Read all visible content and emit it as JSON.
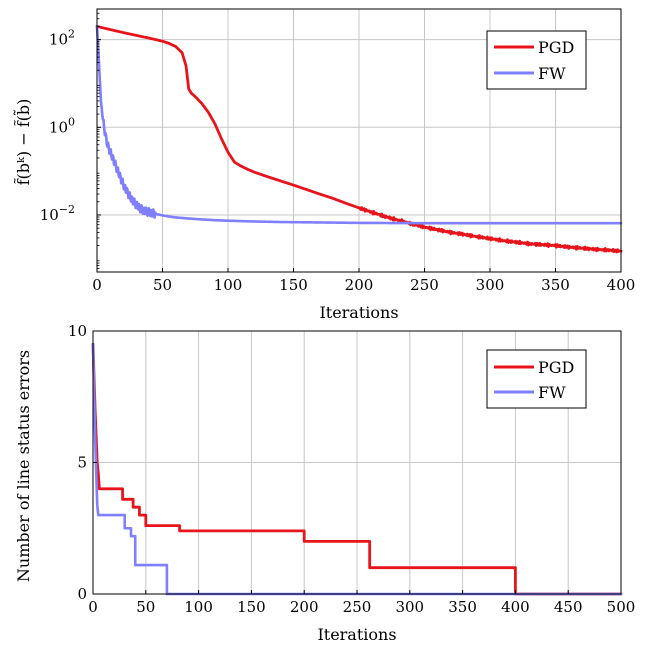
{
  "chart_data": [
    {
      "type": "line",
      "xlabel": "Iterations",
      "ylabel": "f̃(bᵏ) − f̃(b̃)",
      "xlim": [
        0,
        400
      ],
      "ylim": [
        0.0005,
        500
      ],
      "yscale": "log",
      "xticks": [
        "0",
        "50",
        "100",
        "150",
        "200",
        "250",
        "300",
        "350",
        "400"
      ],
      "yticks": [
        {
          "base": "10",
          "exp": "2",
          "value": 100
        },
        {
          "base": "10",
          "exp": "0",
          "value": 1
        },
        {
          "base": "10",
          "exp": "−2",
          "value": 0.01
        }
      ],
      "grid": true,
      "legend_position": "top-right",
      "series": [
        {
          "name": "PGD",
          "color": "#e8141c",
          "x": [
            0,
            10,
            20,
            30,
            40,
            50,
            55,
            60,
            65,
            68,
            70,
            72,
            75,
            80,
            85,
            90,
            95,
            100,
            105,
            110,
            115,
            120,
            130,
            140,
            150,
            160,
            170,
            180,
            190,
            200,
            210,
            220,
            230,
            240,
            250,
            260,
            270,
            280,
            290,
            300,
            310,
            320,
            330,
            340,
            350,
            360,
            370,
            380,
            390,
            400
          ],
          "values": [
            200,
            170,
            145,
            125,
            108,
            92,
            82,
            70,
            50,
            25,
            7.5,
            6.0,
            5.0,
            3.5,
            2.2,
            1.2,
            0.55,
            0.27,
            0.16,
            0.13,
            0.11,
            0.095,
            0.075,
            0.06,
            0.048,
            0.038,
            0.03,
            0.024,
            0.0185,
            0.0145,
            0.0115,
            0.0092,
            0.0076,
            0.0063,
            0.0053,
            0.0046,
            0.004,
            0.0036,
            0.0032,
            0.0029,
            0.0026,
            0.0024,
            0.0022,
            0.0021,
            0.002,
            0.00185,
            0.00175,
            0.00165,
            0.00158,
            0.0015
          ]
        },
        {
          "name": "FW",
          "color": "#7f7fff",
          "x": [
            0,
            1,
            2,
            3,
            4,
            5,
            6,
            7,
            8,
            10,
            12,
            14,
            16,
            18,
            20,
            22,
            24,
            26,
            28,
            30,
            33,
            36,
            40,
            45,
            50,
            55,
            60,
            70,
            80,
            90,
            100,
            120,
            140,
            160,
            180,
            200,
            250,
            300,
            350,
            400
          ],
          "values": [
            200,
            60,
            15,
            4.0,
            2.0,
            1.2,
            0.8,
            0.55,
            0.4,
            0.28,
            0.2,
            0.14,
            0.1,
            0.07,
            0.05,
            0.038,
            0.03,
            0.024,
            0.02,
            0.017,
            0.014,
            0.0125,
            0.0115,
            0.0105,
            0.0098,
            0.0092,
            0.0088,
            0.0083,
            0.0079,
            0.0076,
            0.0074,
            0.0071,
            0.0069,
            0.0068,
            0.0067,
            0.0066,
            0.0065,
            0.0065,
            0.0065,
            0.0065
          ]
        }
      ]
    },
    {
      "type": "line",
      "xlabel": "Iterations",
      "ylabel": "Number of line status errors",
      "xlim": [
        0,
        500
      ],
      "ylim": [
        0,
        10
      ],
      "xticks": [
        "0",
        "50",
        "100",
        "150",
        "200",
        "250",
        "300",
        "350",
        "400",
        "450",
        "500"
      ],
      "yticks": [
        "0",
        "5",
        "10"
      ],
      "grid": true,
      "legend_position": "top-right",
      "series": [
        {
          "name": "PGD",
          "color": "#e8141c",
          "x": [
            0,
            2,
            4,
            5,
            6,
            8,
            28,
            28,
            38,
            38,
            44,
            44,
            50,
            50,
            82,
            82,
            200,
            200,
            262,
            262,
            400,
            400,
            500
          ],
          "values": [
            9.5,
            7.0,
            5.0,
            4.6,
            4.0,
            4.0,
            4.0,
            3.6,
            3.6,
            3.3,
            3.3,
            3.0,
            3.0,
            2.6,
            2.6,
            2.4,
            2.4,
            2.0,
            2.0,
            1.0,
            1.0,
            0.0,
            0.0
          ]
        },
        {
          "name": "FW",
          "color": "#7f7fff",
          "x": [
            0,
            2,
            4,
            5,
            30,
            30,
            36,
            36,
            40,
            40,
            70,
            70,
            500
          ],
          "values": [
            9.5,
            6.0,
            3.4,
            3.0,
            3.0,
            2.5,
            2.5,
            2.2,
            2.2,
            1.1,
            1.1,
            0.0,
            0.0
          ]
        }
      ]
    }
  ]
}
